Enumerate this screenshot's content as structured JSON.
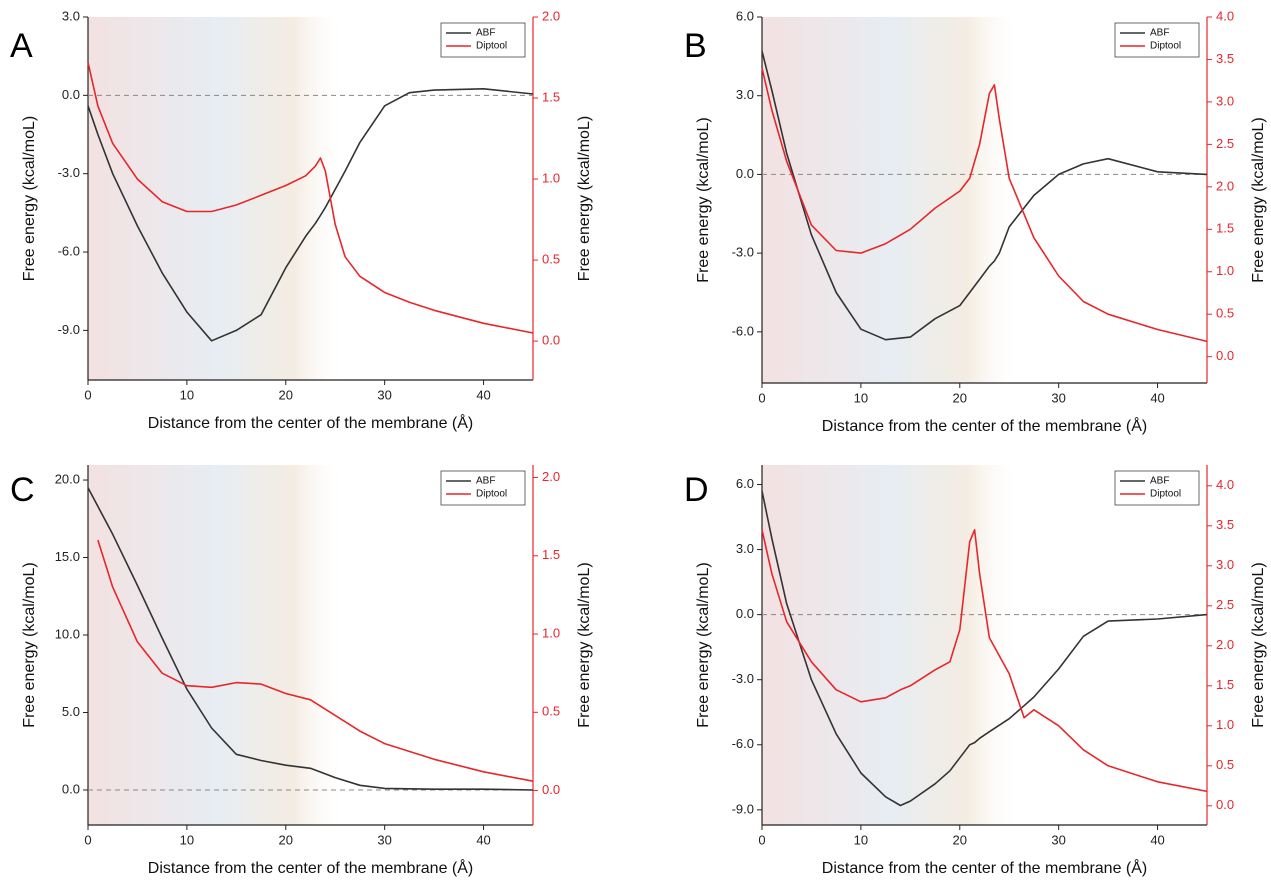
{
  "chart_data": [
    {
      "type": "line",
      "panel": "A",
      "x_label": "Distance from the center of the membrane (Å)",
      "y_label": "Free energy (kcal/moL)",
      "y2_label": "Free energy (kcal/moL)",
      "x": [
        0,
        1,
        2.5,
        5,
        7.5,
        10,
        12.5,
        15,
        17.5,
        20,
        22,
        23,
        23.5,
        24,
        25,
        26,
        27.5,
        30,
        32.5,
        35,
        40,
        45
      ],
      "series": [
        {
          "name": "ABF",
          "color": "#333333",
          "values": [
            -0.4,
            -1.5,
            -3.0,
            -5.0,
            -6.8,
            -8.3,
            -9.4,
            -9.0,
            -8.4,
            -6.6,
            -5.4,
            -4.9,
            -4.6,
            -4.3,
            -3.6,
            -2.9,
            -1.8,
            -0.4,
            0.1,
            0.2,
            0.25,
            0.05
          ]
        },
        {
          "name": "Diptool",
          "color": "#e8262a",
          "axis": "y2",
          "values": [
            1.72,
            1.45,
            1.22,
            1.0,
            0.86,
            0.8,
            0.8,
            0.84,
            0.9,
            0.96,
            1.02,
            1.08,
            1.13,
            1.05,
            0.72,
            0.52,
            0.4,
            0.3,
            0.24,
            0.19,
            0.11,
            0.05
          ]
        }
      ],
      "xlim": [
        0,
        45
      ],
      "xticks": [
        0,
        10,
        20,
        30,
        40
      ],
      "ylim": [
        -10.9,
        3
      ],
      "yticks": [
        {
          "value": 3,
          "label": "3.0"
        },
        {
          "value": 0,
          "label": "0.0"
        },
        {
          "value": -3,
          "label": "-3.0"
        },
        {
          "value": -6,
          "label": "-6.0"
        },
        {
          "value": -9,
          "label": "-9.0"
        }
      ],
      "y2lim": [
        -0.24,
        2.0
      ],
      "y2ticks": [
        {
          "value": 2,
          "label": "2.0"
        },
        1.5,
        {
          "value": 1,
          "label": "1.0"
        },
        0.5,
        {
          "value": 0,
          "label": "0.0"
        }
      ],
      "zero_line": true,
      "legend": "top-right"
    },
    {
      "type": "line",
      "panel": "B",
      "x_label": "Distance from the center of the membrane (Å)",
      "y_label": "Free energy (kcal/moL)",
      "y2_label": "Free energy (kcal/moL)",
      "x": [
        0,
        1,
        2.5,
        5,
        7.5,
        10,
        12.5,
        15,
        17.5,
        20,
        21,
        22,
        23,
        23.5,
        24,
        25,
        27.5,
        30,
        32.5,
        35,
        40,
        45
      ],
      "series": [
        {
          "name": "ABF",
          "color": "#333333",
          "values": [
            4.7,
            3.2,
            0.8,
            -2.3,
            -4.5,
            -5.9,
            -6.3,
            -6.2,
            -5.5,
            -5.0,
            -4.5,
            -4.0,
            -3.5,
            -3.3,
            -3.0,
            -2.0,
            -0.8,
            0,
            0.4,
            0.6,
            0.1,
            0
          ]
        },
        {
          "name": "Diptool",
          "color": "#e8262a",
          "axis": "y2",
          "values": [
            3.4,
            2.9,
            2.3,
            1.55,
            1.25,
            1.22,
            1.33,
            1.5,
            1.75,
            1.95,
            2.1,
            2.5,
            3.1,
            3.2,
            2.8,
            2.1,
            1.4,
            0.95,
            0.65,
            0.5,
            0.32,
            0.18
          ]
        }
      ],
      "xlim": [
        0,
        45
      ],
      "xticks": [
        0,
        10,
        20,
        30,
        40
      ],
      "ylim": [
        -7.95,
        6
      ],
      "yticks": [
        {
          "value": 6,
          "label": "6.0"
        },
        {
          "value": 3,
          "label": "3.0"
        },
        {
          "value": 0,
          "label": "0.0"
        },
        {
          "value": -3,
          "label": "-3.0"
        },
        {
          "value": -6,
          "label": "-6.0"
        }
      ],
      "y2lim": [
        -0.31,
        4.0
      ],
      "y2ticks": [
        {
          "value": 4,
          "label": "4.0"
        },
        3.5,
        {
          "value": 3,
          "label": "3.0"
        },
        2.5,
        {
          "value": 2,
          "label": "2.0"
        },
        1.5,
        {
          "value": 1,
          "label": "1.0"
        },
        0.5,
        {
          "value": 0,
          "label": "0.0"
        }
      ],
      "zero_line": true,
      "legend": "top-right"
    },
    {
      "type": "line",
      "panel": "C",
      "x_label": "Distance from the center of the membrane (Å)",
      "y_label": "Free energy (kcal/moL)",
      "y2_label": "Free energy (kcal/moL)",
      "x": [
        0,
        1,
        2.5,
        5,
        7.5,
        10,
        12.5,
        15,
        17.5,
        20,
        22.5,
        25,
        27.5,
        30,
        35,
        40,
        45
      ],
      "series": [
        {
          "name": "ABF",
          "color": "#333333",
          "values": [
            19.5,
            18.3,
            16.5,
            13.2,
            9.8,
            6.5,
            4.0,
            2.3,
            1.9,
            1.6,
            1.4,
            0.8,
            0.3,
            0.1,
            0.05,
            0.05,
            0.0
          ]
        },
        {
          "name": "Diptool",
          "color": "#e8262a",
          "axis": "y2",
          "values": [
            null,
            1.6,
            1.3,
            0.95,
            0.75,
            0.67,
            0.66,
            0.69,
            0.68,
            0.62,
            0.58,
            0.48,
            0.38,
            0.3,
            0.2,
            0.12,
            0.06
          ]
        }
      ],
      "xlim": [
        0,
        45
      ],
      "xticks": [
        0,
        10,
        20,
        30,
        40
      ],
      "ylim": [
        -2.26,
        20.97
      ],
      "yticks": [
        {
          "value": 20,
          "label": "20.0"
        },
        {
          "value": 15,
          "label": "15.0"
        },
        {
          "value": 10,
          "label": "10.0"
        },
        {
          "value": 5,
          "label": "5.0"
        },
        {
          "value": 0,
          "label": "0.0"
        }
      ],
      "y2lim": [
        -0.22,
        2.08
      ],
      "y2ticks": [
        {
          "value": 2,
          "label": "2.0"
        },
        1.5,
        {
          "value": 1,
          "label": "1.0"
        },
        0.5,
        {
          "value": 0,
          "label": "0.0"
        }
      ],
      "zero_line": true,
      "legend": "top-right"
    },
    {
      "type": "line",
      "panel": "D",
      "x_label": "Distance from the center of the membrane (Å)",
      "y_label": "Free energy (kcal/moL)",
      "y2_label": "Free energy (kcal/moL)",
      "x": [
        0,
        1,
        2.5,
        5,
        7.5,
        10,
        12.5,
        14,
        15,
        17.5,
        19,
        20,
        21,
        21.5,
        22,
        23,
        25,
        26.5,
        27.5,
        30,
        32.5,
        35,
        40,
        45
      ],
      "series": [
        {
          "name": "ABF",
          "color": "#333333",
          "values": [
            5.7,
            3.5,
            0.5,
            -3.0,
            -5.5,
            -7.3,
            -8.4,
            -8.8,
            -8.6,
            -7.8,
            -7.2,
            -6.6,
            -6.0,
            -5.9,
            -5.7,
            -5.4,
            -4.8,
            -4.2,
            -3.8,
            -2.5,
            -1.0,
            -0.3,
            -0.2,
            0.0
          ]
        },
        {
          "name": "Diptool",
          "color": "#e8262a",
          "axis": "y2",
          "values": [
            3.45,
            2.9,
            2.3,
            1.8,
            1.45,
            1.3,
            1.35,
            1.45,
            1.5,
            1.7,
            1.8,
            2.2,
            3.3,
            3.45,
            2.9,
            2.1,
            1.65,
            1.1,
            1.2,
            1.0,
            0.7,
            0.5,
            0.3,
            0.18
          ]
        }
      ],
      "xlim": [
        0,
        45
      ],
      "xticks": [
        0,
        10,
        20,
        30,
        40
      ],
      "ylim": [
        -9.7,
        6.9
      ],
      "yticks": [
        {
          "value": 6,
          "label": "6.0"
        },
        {
          "value": 3,
          "label": "3.0"
        },
        {
          "value": 0,
          "label": "0.0"
        },
        {
          "value": -3,
          "label": "-3.0"
        },
        {
          "value": -6,
          "label": "-6.0"
        },
        {
          "value": -9,
          "label": "-9.0"
        }
      ],
      "y2lim": [
        -0.24,
        4.26
      ],
      "y2ticks": [
        {
          "value": 4,
          "label": "4.0"
        },
        3.5,
        {
          "value": 3,
          "label": "3.0"
        },
        2.5,
        {
          "value": 2,
          "label": "2.0"
        },
        1.5,
        {
          "value": 1,
          "label": "1.0"
        },
        0.5,
        {
          "value": 0,
          "label": "0.0"
        }
      ],
      "zero_line": true,
      "legend": "top-right"
    }
  ]
}
